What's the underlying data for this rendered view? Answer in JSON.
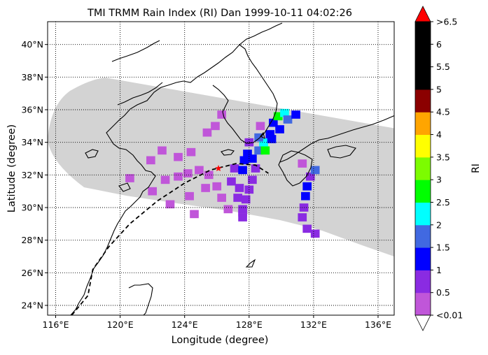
{
  "title": "TMI TRMM Rain Index (RI) Dan 1999-10-11 04:02:26",
  "xlabel": "Longitude (degree)",
  "ylabel": "Latitude (degree)",
  "colorbar": {
    "label": "RI",
    "tick_labels": [
      "<0.01",
      "0.5",
      "1",
      "1.5",
      "2",
      "2.5",
      "3",
      "3.5",
      "4",
      "4.5",
      "5",
      "5.5",
      "6",
      ">6.5"
    ],
    "bins": [
      {
        "min": 0.01,
        "max": 0.5,
        "color": "#c056d9"
      },
      {
        "min": 0.5,
        "max": 1.0,
        "color": "#8a2be2"
      },
      {
        "min": 1.0,
        "max": 1.5,
        "color": "#0000ff"
      },
      {
        "min": 1.5,
        "max": 2.0,
        "color": "#4169e1"
      },
      {
        "min": 2.0,
        "max": 2.5,
        "color": "#00ffff"
      },
      {
        "min": 2.5,
        "max": 3.0,
        "color": "#00ff00"
      },
      {
        "min": 3.0,
        "max": 3.5,
        "color": "#7cfc00"
      },
      {
        "min": 3.5,
        "max": 4.0,
        "color": "#ffff00"
      },
      {
        "min": 4.0,
        "max": 4.5,
        "color": "#ffa500"
      },
      {
        "min": 4.5,
        "max": 5.0,
        "color": "#8b0000"
      },
      {
        "min": 5.0,
        "max": 5.5,
        "color": "#000000"
      },
      {
        "min": 5.5,
        "max": 6.0,
        "color": "#000000"
      },
      {
        "min": 6.0,
        "max": 6.5,
        "color": "#000000"
      }
    ],
    "under_color": "#ffffff",
    "over_color": "#ff0000"
  },
  "map": {
    "lon_range": [
      115.5,
      137.0
    ],
    "lat_range": [
      23.4,
      41.4
    ],
    "lon_ticks": [
      116,
      120,
      124,
      128,
      132,
      136
    ],
    "lat_ticks": [
      24,
      26,
      28,
      30,
      32,
      34,
      36,
      38,
      40
    ],
    "lon_tick_labels": [
      "116°E",
      "120°E",
      "124°E",
      "128°E",
      "132°E",
      "136°E"
    ],
    "lat_tick_labels": [
      "24°N",
      "26°N",
      "28°N",
      "30°N",
      "32°N",
      "34°N",
      "36°N",
      "38°N",
      "40°N"
    ],
    "swath_color": "#d3d3d3",
    "storm_position": {
      "lon": 126.1,
      "lat": 32.4,
      "marker_color": "#ff0000"
    }
  },
  "chart_data": {
    "type": "heatmap",
    "title": "TMI TRMM Rain Index (RI) Dan 1999-10-11 04:02:26",
    "xlabel": "Longitude (degree)",
    "ylabel": "Latitude (degree)",
    "xlim": [
      115.5,
      137.0
    ],
    "ylim": [
      23.4,
      41.4
    ],
    "grid": true,
    "colorbar_label": "RI",
    "storm_track": [
      {
        "lon": 117.0,
        "lat": 23.4
      },
      {
        "lon": 118.0,
        "lat": 24.6
      },
      {
        "lon": 118.3,
        "lat": 26.2
      },
      {
        "lon": 119.3,
        "lat": 27.6
      },
      {
        "lon": 120.6,
        "lat": 29.0
      },
      {
        "lon": 122.3,
        "lat": 30.4
      },
      {
        "lon": 124.0,
        "lat": 31.5
      },
      {
        "lon": 125.6,
        "lat": 32.3
      },
      {
        "lon": 127.2,
        "lat": 32.7
      },
      {
        "lon": 128.4,
        "lat": 32.6
      },
      {
        "lon": 129.2,
        "lat": 32.1
      }
    ],
    "rain_cells": [
      {
        "lon": 124.2,
        "lat": 32.1,
        "ri": 0.3
      },
      {
        "lon": 123.6,
        "lat": 31.9,
        "ri": 0.2
      },
      {
        "lon": 122.8,
        "lat": 31.7,
        "ri": 0.2
      },
      {
        "lon": 122.0,
        "lat": 31.0,
        "ri": 0.2
      },
      {
        "lon": 124.9,
        "lat": 32.3,
        "ri": 0.4
      },
      {
        "lon": 125.5,
        "lat": 32.0,
        "ri": 0.4
      },
      {
        "lon": 125.3,
        "lat": 31.2,
        "ri": 0.3
      },
      {
        "lon": 124.3,
        "lat": 30.7,
        "ri": 0.2
      },
      {
        "lon": 123.1,
        "lat": 30.2,
        "ri": 0.2
      },
      {
        "lon": 123.6,
        "lat": 33.1,
        "ri": 0.2
      },
      {
        "lon": 122.6,
        "lat": 33.5,
        "ri": 0.2
      },
      {
        "lon": 124.6,
        "lat": 29.6,
        "ri": 0.2
      },
      {
        "lon": 126.3,
        "lat": 30.6,
        "ri": 0.3
      },
      {
        "lon": 126.7,
        "lat": 29.9,
        "ri": 0.3
      },
      {
        "lon": 127.6,
        "lat": 29.7,
        "ri": 0.3
      },
      {
        "lon": 126.0,
        "lat": 31.3,
        "ri": 0.4
      },
      {
        "lon": 126.9,
        "lat": 31.6,
        "ri": 0.8
      },
      {
        "lon": 127.1,
        "lat": 32.4,
        "ri": 0.7
      },
      {
        "lon": 127.4,
        "lat": 31.2,
        "ri": 0.6
      },
      {
        "lon": 127.3,
        "lat": 30.6,
        "ri": 0.5
      },
      {
        "lon": 127.7,
        "lat": 32.9,
        "ri": 1.1
      },
      {
        "lon": 127.9,
        "lat": 33.3,
        "ri": 1.2
      },
      {
        "lon": 128.2,
        "lat": 33.0,
        "ri": 1.4
      },
      {
        "lon": 127.6,
        "lat": 32.3,
        "ri": 1.0
      },
      {
        "lon": 128.6,
        "lat": 33.5,
        "ri": 1.6
      },
      {
        "lon": 128.4,
        "lat": 32.4,
        "ri": 0.9
      },
      {
        "lon": 128.2,
        "lat": 31.7,
        "ri": 0.7
      },
      {
        "lon": 128.0,
        "lat": 31.1,
        "ri": 0.7
      },
      {
        "lon": 127.8,
        "lat": 30.5,
        "ri": 0.6
      },
      {
        "lon": 127.6,
        "lat": 29.9,
        "ri": 0.6
      },
      {
        "lon": 127.6,
        "lat": 29.4,
        "ri": 0.5
      },
      {
        "lon": 128.9,
        "lat": 34.0,
        "ri": 2.2
      },
      {
        "lon": 129.0,
        "lat": 33.5,
        "ri": 2.7
      },
      {
        "lon": 128.6,
        "lat": 34.3,
        "ri": 1.7
      },
      {
        "lon": 129.3,
        "lat": 34.5,
        "ri": 1.3
      },
      {
        "lon": 129.5,
        "lat": 35.2,
        "ri": 1.1
      },
      {
        "lon": 129.8,
        "lat": 35.6,
        "ri": 2.6
      },
      {
        "lon": 130.2,
        "lat": 35.8,
        "ri": 2.3
      },
      {
        "lon": 130.4,
        "lat": 35.4,
        "ri": 1.6
      },
      {
        "lon": 130.9,
        "lat": 35.7,
        "ri": 1.2
      },
      {
        "lon": 129.9,
        "lat": 34.8,
        "ri": 1.1
      },
      {
        "lon": 129.4,
        "lat": 34.2,
        "ri": 1.3
      },
      {
        "lon": 128.0,
        "lat": 34.0,
        "ri": 0.8
      },
      {
        "lon": 128.7,
        "lat": 35.0,
        "ri": 0.4
      },
      {
        "lon": 131.8,
        "lat": 31.9,
        "ri": 0.8
      },
      {
        "lon": 131.6,
        "lat": 31.3,
        "ri": 1.1
      },
      {
        "lon": 131.5,
        "lat": 30.7,
        "ri": 1.0
      },
      {
        "lon": 131.4,
        "lat": 30.0,
        "ri": 0.9
      },
      {
        "lon": 131.3,
        "lat": 29.4,
        "ri": 0.8
      },
      {
        "lon": 131.6,
        "lat": 28.7,
        "ri": 0.5
      },
      {
        "lon": 132.1,
        "lat": 28.4,
        "ri": 0.6
      },
      {
        "lon": 132.1,
        "lat": 32.3,
        "ri": 1.7
      },
      {
        "lon": 131.3,
        "lat": 32.7,
        "ri": 0.3
      },
      {
        "lon": 126.3,
        "lat": 35.7,
        "ri": 0.3
      },
      {
        "lon": 125.9,
        "lat": 35.0,
        "ri": 0.2
      },
      {
        "lon": 125.4,
        "lat": 34.6,
        "ri": 0.2
      },
      {
        "lon": 124.4,
        "lat": 33.4,
        "ri": 0.2
      },
      {
        "lon": 121.9,
        "lat": 32.9,
        "ri": 0.2
      },
      {
        "lon": 120.6,
        "lat": 31.8,
        "ri": 0.2
      }
    ]
  }
}
